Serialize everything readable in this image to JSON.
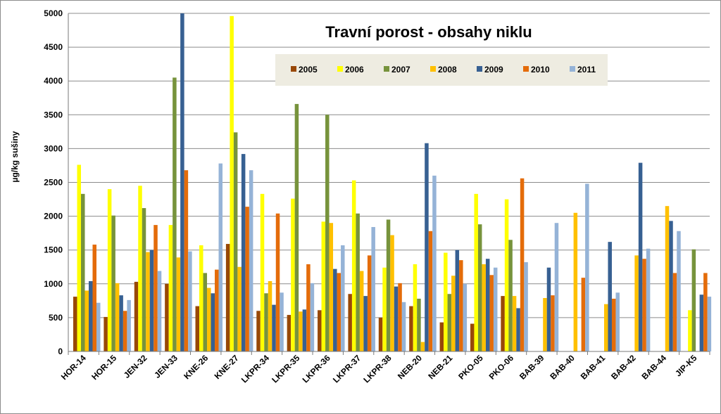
{
  "chart_data": {
    "type": "bar",
    "title": "Travní porost - obsahy  niklu",
    "ylabel": "µg/kg sušiny",
    "xlabel": "",
    "ylim": [
      0,
      5000
    ],
    "yticks": [
      0,
      500,
      1000,
      1500,
      2000,
      2500,
      3000,
      3500,
      4000,
      4500,
      5000
    ],
    "grid": "horizontal",
    "legend_position": "top-right",
    "categories": [
      "HOR-14",
      "HOR-15",
      "JEN-32",
      "JEN-33",
      "KNE-26",
      "KNE-27",
      "LKPR-34",
      "LKPR-35",
      "LKPR-36",
      "LKPR-37",
      "LKPR-38",
      "NEB-20",
      "NEB-21",
      "PKO-05",
      "PKO-06",
      "BAB-39",
      "BAB-40",
      "BAB-41",
      "BAB-42",
      "BAB-44",
      "JIP-K5"
    ],
    "series": [
      {
        "name": "2005",
        "color": "#984807",
        "values": [
          810,
          510,
          1030,
          1000,
          670,
          1590,
          600,
          540,
          610,
          850,
          500,
          670,
          430,
          410,
          820,
          null,
          null,
          null,
          null,
          null,
          null
        ]
      },
      {
        "name": "2006",
        "color": "#ffff00",
        "values": [
          2760,
          2400,
          2450,
          1870,
          1570,
          4960,
          2330,
          2260,
          1920,
          2530,
          1240,
          1290,
          1460,
          2330,
          2250,
          null,
          null,
          null,
          null,
          null,
          610
        ]
      },
      {
        "name": "2007",
        "color": "#77933c",
        "values": [
          2330,
          2010,
          2120,
          4050,
          1160,
          3240,
          860,
          3660,
          3500,
          2040,
          1950,
          780,
          850,
          1880,
          1650,
          null,
          null,
          null,
          null,
          null,
          1510
        ]
      },
      {
        "name": "2008",
        "color": "#ffc000",
        "values": [
          900,
          1010,
          1470,
          1390,
          940,
          1250,
          1040,
          590,
          1900,
          1190,
          1720,
          140,
          1120,
          1290,
          820,
          790,
          2050,
          700,
          1420,
          2150,
          null
        ]
      },
      {
        "name": "2009",
        "color": "#376092",
        "values": [
          1040,
          830,
          1500,
          5000,
          860,
          2920,
          690,
          620,
          1220,
          820,
          960,
          3080,
          1500,
          1370,
          640,
          1240,
          null,
          1620,
          2790,
          1930,
          840
        ]
      },
      {
        "name": "2010",
        "color": "#e46c0a",
        "values": [
          1580,
          600,
          1870,
          2680,
          1210,
          2140,
          2040,
          1290,
          1160,
          1420,
          1010,
          1780,
          1350,
          1130,
          2560,
          830,
          1090,
          780,
          1370,
          1160,
          1160
        ]
      },
      {
        "name": "2011",
        "color": "#95b3d7",
        "values": [
          720,
          760,
          1190,
          1480,
          2780,
          2680,
          870,
          1010,
          1570,
          1840,
          730,
          2600,
          1000,
          1240,
          1320,
          1900,
          2480,
          870,
          1520,
          1780,
          810
        ]
      }
    ]
  }
}
